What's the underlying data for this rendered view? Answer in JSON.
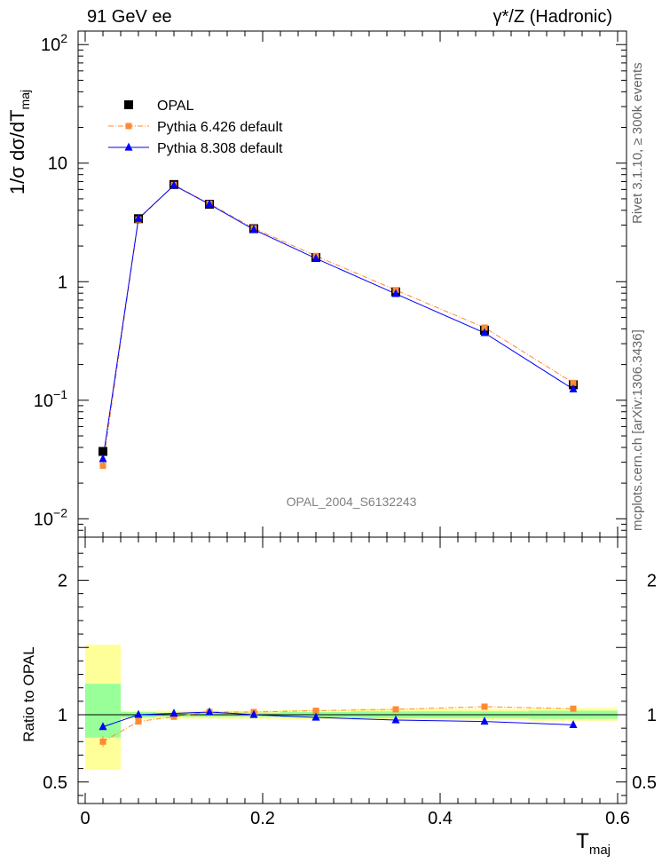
{
  "header": {
    "left": "91 GeV ee",
    "right": "γ*/Z (Hadronic)"
  },
  "side_text": {
    "rivet": "Rivet 3.1.10, ≥ 300k events",
    "source": "mcplots.cern.ch [arXiv:1306.3436]"
  },
  "colors": {
    "data": "#000000",
    "pythia6": "#ff8a33",
    "pythia8": "#0000ff",
    "band_inner": "#99ff99",
    "band_outer": "#ffff99",
    "watermark": "#808080"
  },
  "chart_data": [
    {
      "type": "scatter",
      "panel": "main",
      "ylabel": "1/σ dσ/dT",
      "ylabel_sub": "maj",
      "yscale": "log",
      "ylim": [
        0.007,
        130
      ],
      "xlim": [
        -0.008,
        0.61
      ],
      "watermark": "OPAL_2004_S6132243",
      "yticks": [
        {
          "v": 0.01,
          "label": "10",
          "sup": "−2"
        },
        {
          "v": 0.1,
          "label": "10",
          "sup": "−1"
        },
        {
          "v": 1,
          "label": "1",
          "sup": ""
        },
        {
          "v": 10,
          "label": "10",
          "sup": ""
        },
        {
          "v": 100,
          "label": "10",
          "sup": "2"
        }
      ],
      "legend": [
        {
          "label": "OPAL",
          "style": "data"
        },
        {
          "label": "Pythia 6.426 default",
          "style": "pythia6"
        },
        {
          "label": "Pythia 8.308 default",
          "style": "pythia8"
        }
      ],
      "bin_edges": [
        0.0,
        0.04,
        0.08,
        0.12,
        0.16,
        0.22,
        0.3,
        0.4,
        0.5,
        0.6
      ],
      "x": [
        0.02,
        0.06,
        0.1,
        0.14,
        0.19,
        0.26,
        0.35,
        0.45,
        0.55
      ],
      "series": [
        {
          "name": "OPAL",
          "values": [
            0.037,
            3.4,
            6.6,
            4.5,
            2.8,
            1.6,
            0.82,
            0.39,
            0.135
          ]
        },
        {
          "name": "Pythia 6.426 default",
          "values": [
            0.028,
            3.35,
            6.55,
            4.55,
            2.82,
            1.65,
            0.85,
            0.41,
            0.14
          ]
        },
        {
          "name": "Pythia 8.308 default",
          "values": [
            0.032,
            3.4,
            6.5,
            4.5,
            2.75,
            1.57,
            0.79,
            0.37,
            0.124
          ]
        }
      ]
    },
    {
      "type": "line",
      "panel": "ratio",
      "ylabel": "Ratio to OPAL",
      "ylim": [
        0.34,
        2.32
      ],
      "xlim": [
        -0.008,
        0.61
      ],
      "xlabel": "T",
      "xlabel_sub": "maj",
      "xticks": [
        {
          "v": 0,
          "label": "0"
        },
        {
          "v": 0.2,
          "label": "0.2"
        },
        {
          "v": 0.4,
          "label": "0.4"
        },
        {
          "v": 0.6,
          "label": "0.6"
        }
      ],
      "yticks": [
        {
          "v": 0.5,
          "label": "0.5"
        },
        {
          "v": 1,
          "label": "1"
        },
        {
          "v": 2,
          "label": "2"
        }
      ],
      "bin_edges": [
        0.0,
        0.04,
        0.08,
        0.12,
        0.16,
        0.22,
        0.3,
        0.4,
        0.5,
        0.6
      ],
      "band_inner": [
        [
          0.83,
          1.23
        ],
        [
          0.98,
          1.02
        ],
        [
          0.985,
          1.015
        ],
        [
          0.985,
          1.015
        ],
        [
          0.985,
          1.015
        ],
        [
          0.98,
          1.02
        ],
        [
          0.975,
          1.025
        ],
        [
          0.975,
          1.025
        ],
        [
          0.97,
          1.03
        ]
      ],
      "band_outer": [
        [
          0.59,
          1.52
        ],
        [
          0.97,
          1.03
        ],
        [
          0.97,
          1.03
        ],
        [
          0.97,
          1.03
        ],
        [
          0.97,
          1.03
        ],
        [
          0.965,
          1.035
        ],
        [
          0.96,
          1.045
        ],
        [
          0.96,
          1.045
        ],
        [
          0.955,
          1.05
        ]
      ],
      "x": [
        0.02,
        0.06,
        0.1,
        0.14,
        0.19,
        0.26,
        0.35,
        0.45,
        0.55
      ],
      "series": [
        {
          "name": "Pythia 6.426 default",
          "values": [
            0.8,
            0.95,
            0.985,
            1.02,
            1.02,
            1.03,
            1.04,
            1.06,
            1.045
          ],
          "err": [
            0.04,
            0,
            0,
            0,
            0,
            0,
            0,
            0,
            0
          ]
        },
        {
          "name": "Pythia 8.308 default",
          "values": [
            0.91,
            1.0,
            1.01,
            1.02,
            1.0,
            0.98,
            0.96,
            0.95,
            0.925
          ],
          "err": [
            0,
            0,
            0,
            0,
            0,
            0,
            0,
            0,
            0
          ]
        }
      ]
    }
  ]
}
